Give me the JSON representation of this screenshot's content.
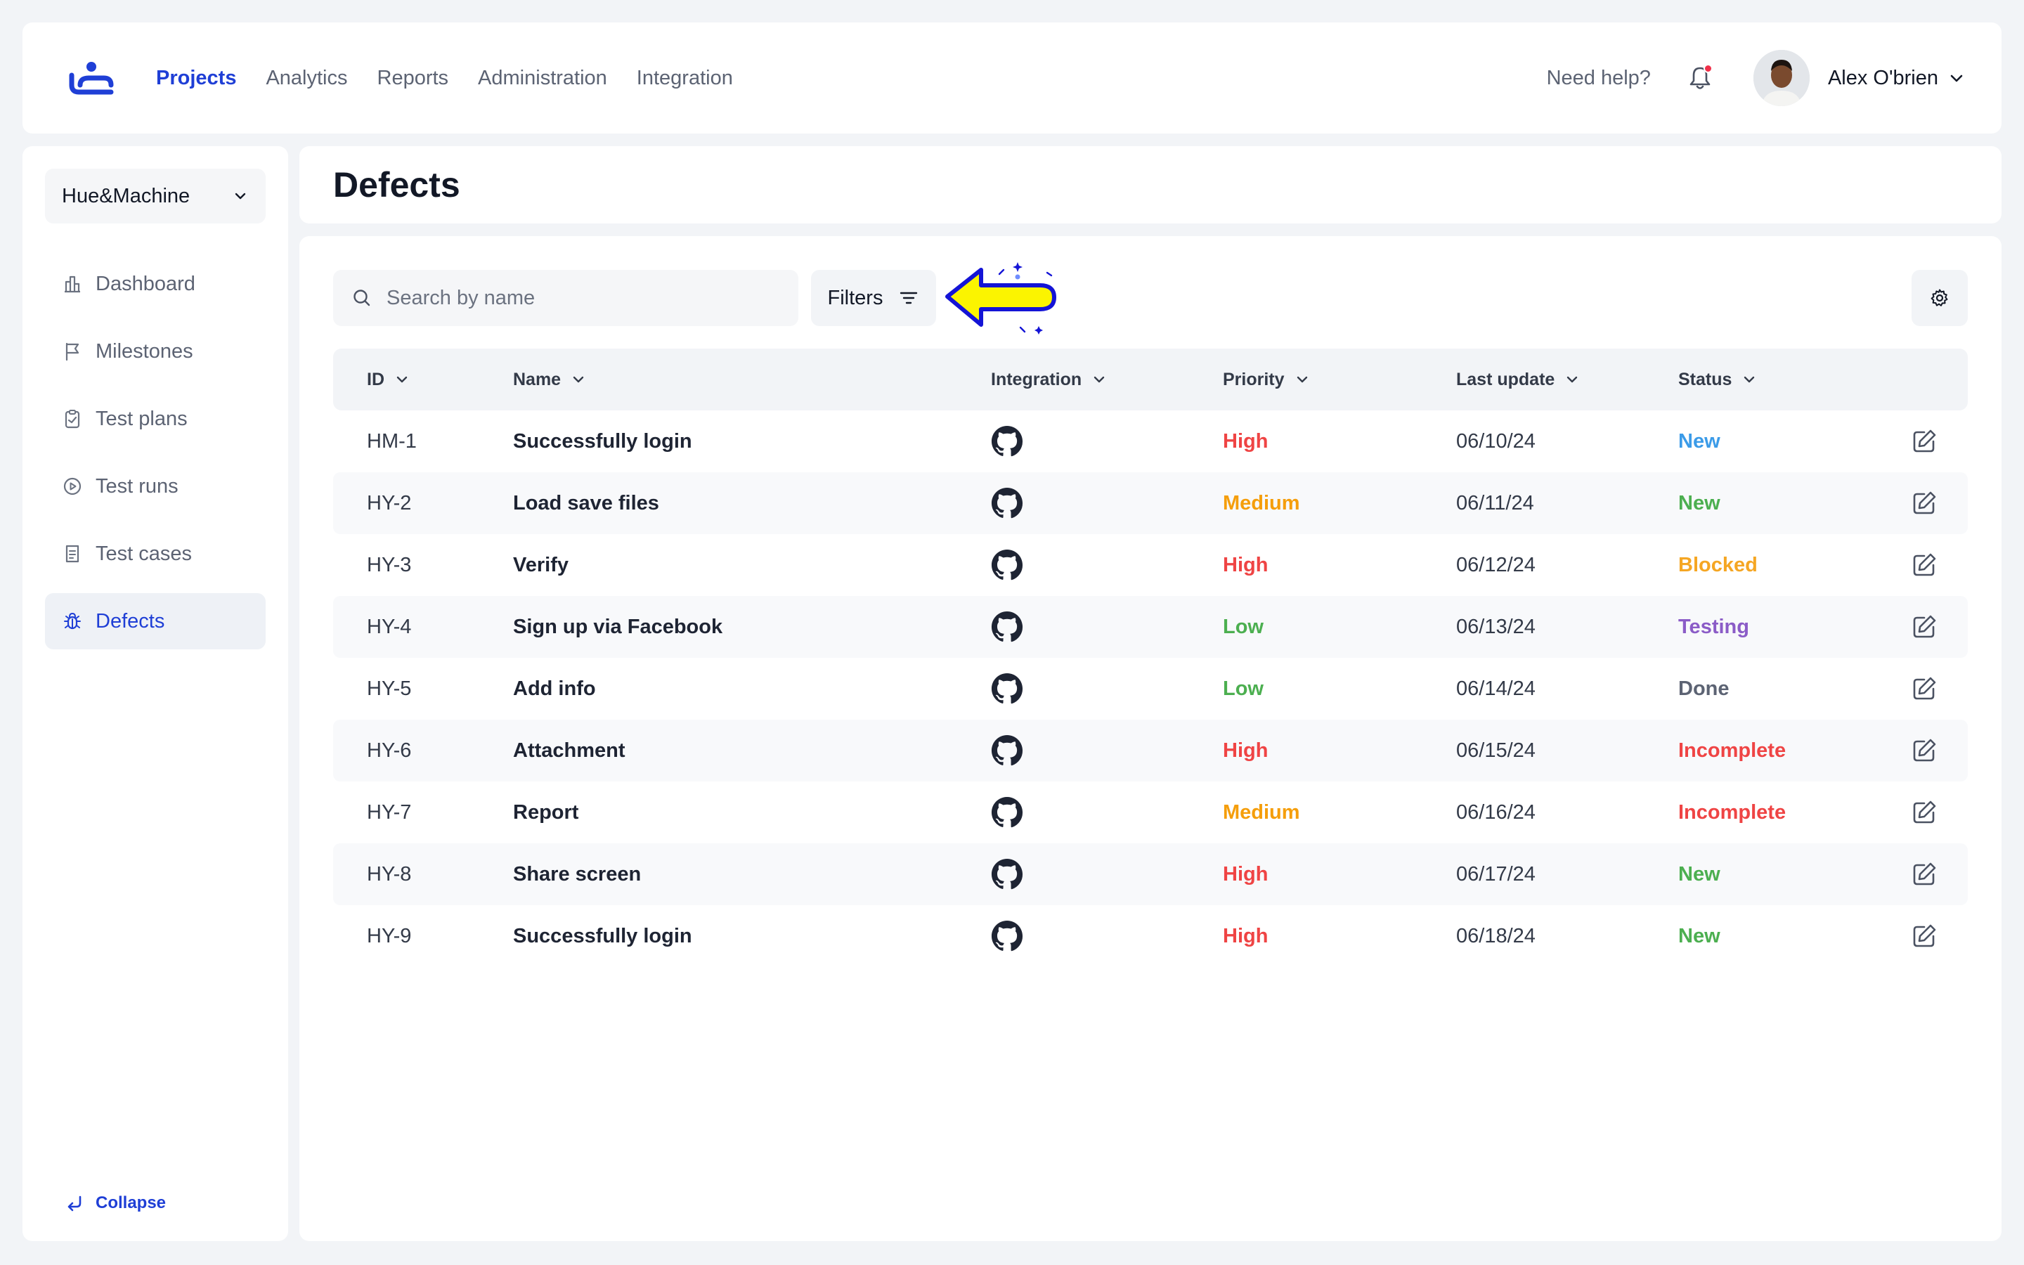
{
  "nav": {
    "items": [
      {
        "label": "Projects",
        "active": true
      },
      {
        "label": "Analytics",
        "active": false
      },
      {
        "label": "Reports",
        "active": false
      },
      {
        "label": "Administration",
        "active": false
      },
      {
        "label": "Integration",
        "active": false
      }
    ],
    "help": "Need help?",
    "user_name": "Alex O'brien"
  },
  "sidebar": {
    "project": "Hue&Machine",
    "items": [
      {
        "label": "Dashboard",
        "icon": "dashboard-icon"
      },
      {
        "label": "Milestones",
        "icon": "flag-icon"
      },
      {
        "label": "Test plans",
        "icon": "clipboard-icon"
      },
      {
        "label": "Test runs",
        "icon": "play-circle-icon"
      },
      {
        "label": "Test cases",
        "icon": "document-icon"
      },
      {
        "label": "Defects",
        "icon": "bug-icon",
        "active": true
      }
    ],
    "collapse": "Collapse"
  },
  "page": {
    "title": "Defects",
    "search_placeholder": "Search by name",
    "filters_label": "Filters"
  },
  "table": {
    "columns": [
      "ID",
      "Name",
      "Integration",
      "Priority",
      "Last update",
      "Status"
    ],
    "rows": [
      {
        "id": "HM-1",
        "name": "Successfully login",
        "priority": "High",
        "date": "06/10/24",
        "status": "New"
      },
      {
        "id": "HY-2",
        "name": "Load save files",
        "priority": "Medium",
        "date": "06/11/24",
        "status": "New"
      },
      {
        "id": "HY-3",
        "name": "Verify",
        "priority": "High",
        "date": "06/12/24",
        "status": "Blocked"
      },
      {
        "id": "HY-4",
        "name": "Sign up via Facebook",
        "priority": "Low",
        "date": "06/13/24",
        "status": "Testing"
      },
      {
        "id": "HY-5",
        "name": "Add info",
        "priority": "Low",
        "date": "06/14/24",
        "status": "Done"
      },
      {
        "id": "HY-6",
        "name": "Attachment",
        "priority": "High",
        "date": "06/15/24",
        "status": "Incomplete"
      },
      {
        "id": "HY-7",
        "name": "Report",
        "priority": "Medium",
        "date": "06/16/24",
        "status": "Incomplete"
      },
      {
        "id": "HY-8",
        "name": "Share screen",
        "priority": "High",
        "date": "06/17/24",
        "status": "New"
      },
      {
        "id": "HY-9",
        "name": "Successfully login",
        "priority": "High",
        "date": "06/18/24",
        "status": "New"
      }
    ]
  },
  "colors": {
    "accent": "#1f3fd6",
    "priority": {
      "High": "#ef4444",
      "Medium": "#f59e0b",
      "Low": "#4caf50"
    },
    "status": {
      "New": "#3b9be8",
      "Blocked": "#f5a623",
      "Testing": "#8b5cc7",
      "Done": "#5c6373",
      "Incomplete": "#ef4444",
      "New_green": "#4caf50"
    },
    "status_by_row": [
      "#3b9be8",
      "#4caf50",
      "#f5a623",
      "#8b5cc7",
      "#5c6373",
      "#ef4444",
      "#ef4444",
      "#4caf50",
      "#4caf50"
    ]
  }
}
